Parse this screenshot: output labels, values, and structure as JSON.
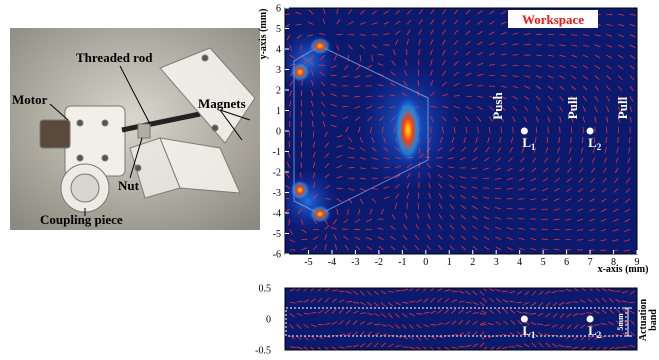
{
  "photo": {
    "labels": {
      "threaded_rod": "Threaded rod",
      "motor": "Motor",
      "magnets": "Magnets",
      "nut": "Nut",
      "coupling_piece": "Coupling piece"
    }
  },
  "chart_data": [
    {
      "type": "heatmap",
      "title": "",
      "xlabel": "x-axis (mm)",
      "ylabel": "y-axis (mm)",
      "xlim": [
        -6,
        9
      ],
      "ylim": [
        -6,
        6
      ],
      "x_ticks": [
        "-5",
        "-4",
        "-3",
        "-2",
        "-1",
        "0",
        "1",
        "2",
        "3",
        "4",
        "5",
        "6",
        "7",
        "8",
        "9"
      ],
      "y_ticks": [
        "-6",
        "-5",
        "-4",
        "-3",
        "-2",
        "-1",
        "0",
        "1",
        "2",
        "3",
        "4",
        "5",
        "6"
      ],
      "annotations": {
        "workspace": "Workspace",
        "push": "Push",
        "pull_1": "Pull",
        "pull_2": "Pull",
        "point_1": "L",
        "point_1_sub": "1",
        "point_2": "L",
        "point_2_sub": "2"
      },
      "points": [
        {
          "label": "L1",
          "x": 4.2,
          "y": 0
        },
        {
          "label": "L2",
          "x": 7.0,
          "y": 0
        }
      ],
      "colors": {
        "background": "#0a1a6e",
        "arrows": "#ff2b2b",
        "hot": "#ffd21a",
        "workspace_text": "#ff1010"
      }
    },
    {
      "type": "heatmap",
      "ylim": [
        -0.5,
        0.5
      ],
      "y_ticks": [
        "0.5",
        "0",
        "-0.5"
      ],
      "annotations": {
        "point_1": "L",
        "point_1_sub": "1",
        "point_2": "L",
        "point_2_sub": "2",
        "band_width": "5mm",
        "actuation": "Actuation",
        "band": "band"
      },
      "points": [
        {
          "label": "L1",
          "x": 4.2,
          "y": 0
        },
        {
          "label": "L2",
          "x": 7.0,
          "y": 0
        }
      ]
    }
  ]
}
